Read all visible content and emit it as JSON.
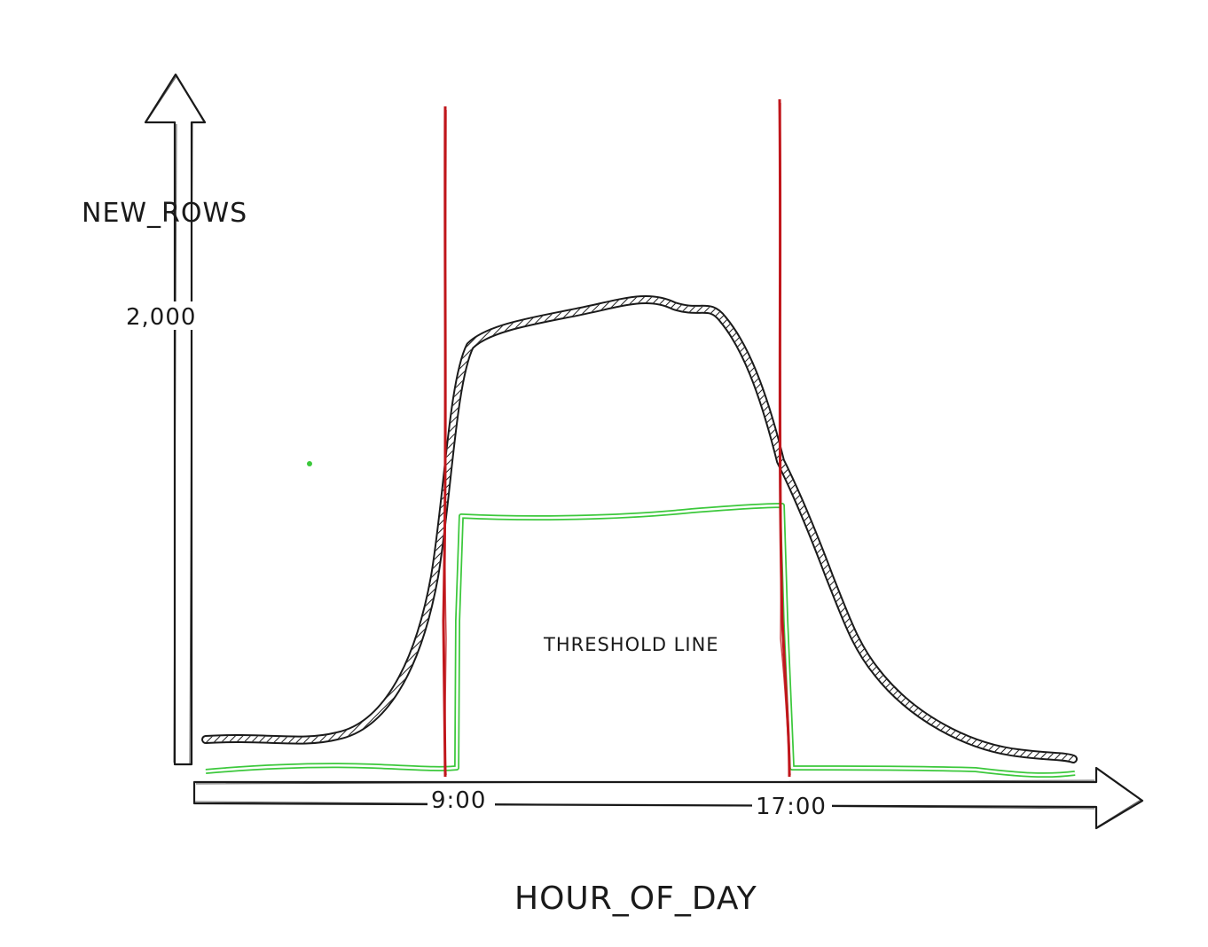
{
  "diagram": {
    "y_axis_label": "NEW_ROWS",
    "x_axis_label": "HOUR_OF_DAY",
    "y_tick_label": "2,000",
    "x_tick_labels": [
      "9:00",
      "17:00"
    ],
    "threshold_label": "THRESHOLD LINE",
    "colors": {
      "ink": "#1a1a1a",
      "activity_curve": "#1a1a1a",
      "threshold_line": "#3cc83c",
      "boundary_lines": "#c0171c",
      "background": "#ffffff"
    }
  }
}
